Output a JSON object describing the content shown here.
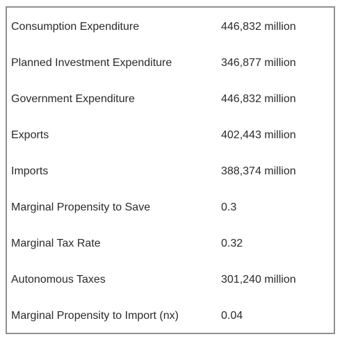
{
  "rows": [
    {
      "label": "Consumption Expenditure",
      "value": "446,832 million"
    },
    {
      "label": "Planned Investment Expenditure",
      "value": "346,877 million"
    },
    {
      "label": "Government Expenditure",
      "value": "446,832 million"
    },
    {
      "label": "Exports",
      "value": "402,443 million"
    },
    {
      "label": "Imports",
      "value": "388,374 million"
    },
    {
      "label": "Marginal Propensity to Save",
      "value": "0.3"
    },
    {
      "label": "Marginal Tax Rate",
      "value": "0.32"
    },
    {
      "label": "Autonomous Taxes",
      "value": "301,240 million"
    },
    {
      "label": "Marginal Propensity to Import (nx)",
      "value": "0.04"
    }
  ]
}
